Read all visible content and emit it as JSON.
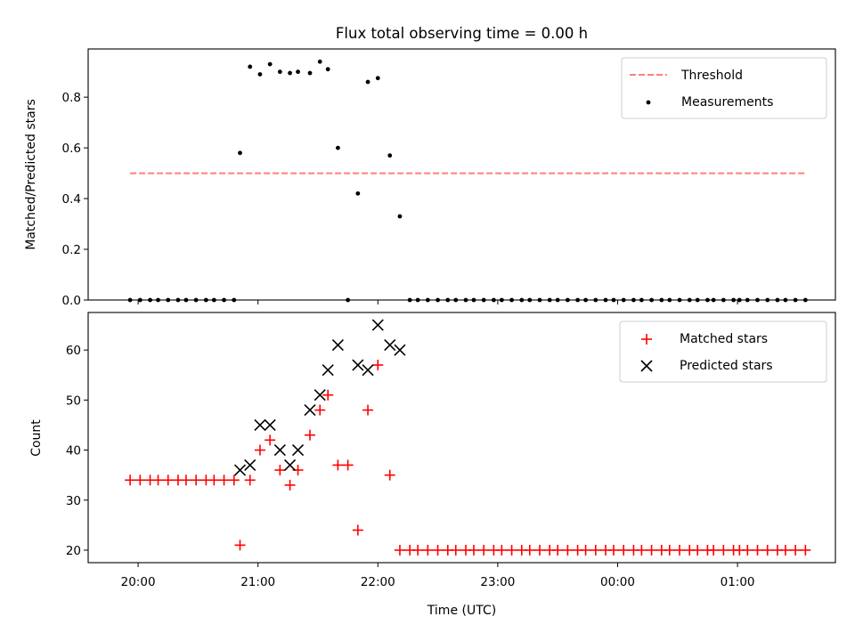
{
  "chart_data": [
    {
      "type": "scatter",
      "title": "Flux total observing time = 0.00 h",
      "xlabel": "",
      "ylabel": "Matched/Predicted stars",
      "ylim": [
        0,
        0.99
      ],
      "yticks": [
        "0.0",
        "0.2",
        "0.4",
        "0.6",
        "0.8"
      ],
      "ytick_values": [
        0,
        0.2,
        0.4,
        0.6,
        0.8
      ],
      "legend_position": "top-right",
      "grid": false,
      "threshold": {
        "name": "Threshold",
        "value": 0.5,
        "x_start": "19:56",
        "x_end": "01:34",
        "color": "#ff7f7f",
        "style": "dashed"
      },
      "series": [
        {
          "name": "Measurements",
          "color": "#000000",
          "marker": "dot",
          "points": [
            [
              "19:56",
              0
            ],
            [
              "20:01",
              0
            ],
            [
              "20:06",
              0
            ],
            [
              "20:10",
              0
            ],
            [
              "20:15",
              0
            ],
            [
              "20:20",
              0
            ],
            [
              "20:24",
              0
            ],
            [
              "20:29",
              0
            ],
            [
              "20:34",
              0
            ],
            [
              "20:38",
              0
            ],
            [
              "20:43",
              0
            ],
            [
              "20:48",
              0
            ],
            [
              "20:51",
              0.58
            ],
            [
              "20:56",
              0.92
            ],
            [
              "21:01",
              0.89
            ],
            [
              "21:06",
              0.93
            ],
            [
              "21:11",
              0.9
            ],
            [
              "21:16",
              0.895
            ],
            [
              "21:20",
              0.9
            ],
            [
              "21:26",
              0.895
            ],
            [
              "21:31",
              0.94
            ],
            [
              "21:35",
              0.91
            ],
            [
              "21:40",
              0.6
            ],
            [
              "21:45",
              0
            ],
            [
              "21:50",
              0.42
            ],
            [
              "21:55",
              0.86
            ],
            [
              "22:00",
              0.875
            ],
            [
              "22:06",
              0.57
            ],
            [
              "22:11",
              0.33
            ],
            [
              "22:16",
              0
            ],
            [
              "22:20",
              0
            ],
            [
              "22:25",
              0
            ],
            [
              "22:30",
              0
            ],
            [
              "22:35",
              0
            ],
            [
              "22:39",
              0
            ],
            [
              "22:44",
              0
            ],
            [
              "22:48",
              0
            ],
            [
              "22:53",
              0
            ],
            [
              "22:58",
              0
            ],
            [
              "23:02",
              0
            ],
            [
              "23:07",
              0
            ],
            [
              "23:12",
              0
            ],
            [
              "23:16",
              0
            ],
            [
              "23:21",
              0
            ],
            [
              "23:26",
              0
            ],
            [
              "23:30",
              0
            ],
            [
              "23:35",
              0
            ],
            [
              "23:40",
              0
            ],
            [
              "23:44",
              0
            ],
            [
              "23:49",
              0
            ],
            [
              "23:54",
              0
            ],
            [
              "23:58",
              0
            ],
            [
              "00:03",
              0
            ],
            [
              "00:08",
              0
            ],
            [
              "00:12",
              0
            ],
            [
              "00:17",
              0
            ],
            [
              "00:22",
              0
            ],
            [
              "00:26",
              0
            ],
            [
              "00:31",
              0
            ],
            [
              "00:36",
              0
            ],
            [
              "00:40",
              0
            ],
            [
              "00:45",
              0
            ],
            [
              "00:48",
              0
            ],
            [
              "00:53",
              0
            ],
            [
              "00:58",
              0
            ],
            [
              "01:01",
              0
            ],
            [
              "01:05",
              0
            ],
            [
              "01:10",
              0
            ],
            [
              "01:15",
              0
            ],
            [
              "01:20",
              0
            ],
            [
              "01:24",
              0
            ],
            [
              "01:29",
              0
            ],
            [
              "01:34",
              0
            ]
          ]
        }
      ]
    },
    {
      "type": "scatter",
      "title": "",
      "xlabel": "Time (UTC)",
      "ylabel": "Count",
      "ylim": [
        17.5,
        67.5
      ],
      "yticks": [
        "20",
        "30",
        "40",
        "50",
        "60"
      ],
      "ytick_values": [
        20,
        30,
        40,
        50,
        60
      ],
      "xlim": [
        "19:35",
        "01:49"
      ],
      "xticks": [
        "20:00",
        "21:00",
        "22:00",
        "23:00",
        "00:00",
        "01:00"
      ],
      "legend_position": "top-right",
      "grid": false,
      "series": [
        {
          "name": "Matched stars",
          "color": "#ff0000",
          "marker": "plus",
          "points": [
            [
              "19:56",
              34
            ],
            [
              "20:01",
              34
            ],
            [
              "20:06",
              34
            ],
            [
              "20:10",
              34
            ],
            [
              "20:15",
              34
            ],
            [
              "20:20",
              34
            ],
            [
              "20:24",
              34
            ],
            [
              "20:29",
              34
            ],
            [
              "20:34",
              34
            ],
            [
              "20:38",
              34
            ],
            [
              "20:43",
              34
            ],
            [
              "20:48",
              34
            ],
            [
              "20:51",
              21
            ],
            [
              "20:56",
              34
            ],
            [
              "21:01",
              40
            ],
            [
              "21:06",
              42
            ],
            [
              "21:11",
              36
            ],
            [
              "21:16",
              33
            ],
            [
              "21:20",
              36
            ],
            [
              "21:26",
              43
            ],
            [
              "21:31",
              48
            ],
            [
              "21:35",
              51
            ],
            [
              "21:40",
              37
            ],
            [
              "21:45",
              37
            ],
            [
              "21:50",
              24
            ],
            [
              "21:55",
              48
            ],
            [
              "22:00",
              57
            ],
            [
              "22:06",
              35
            ],
            [
              "22:11",
              20
            ],
            [
              "22:16",
              20
            ],
            [
              "22:20",
              20
            ],
            [
              "22:25",
              20
            ],
            [
              "22:30",
              20
            ],
            [
              "22:35",
              20
            ],
            [
              "22:39",
              20
            ],
            [
              "22:44",
              20
            ],
            [
              "22:48",
              20
            ],
            [
              "22:53",
              20
            ],
            [
              "22:58",
              20
            ],
            [
              "23:02",
              20
            ],
            [
              "23:07",
              20
            ],
            [
              "23:12",
              20
            ],
            [
              "23:16",
              20
            ],
            [
              "23:21",
              20
            ],
            [
              "23:26",
              20
            ],
            [
              "23:30",
              20
            ],
            [
              "23:35",
              20
            ],
            [
              "23:40",
              20
            ],
            [
              "23:44",
              20
            ],
            [
              "23:49",
              20
            ],
            [
              "23:54",
              20
            ],
            [
              "23:58",
              20
            ],
            [
              "00:03",
              20
            ],
            [
              "00:08",
              20
            ],
            [
              "00:12",
              20
            ],
            [
              "00:17",
              20
            ],
            [
              "00:22",
              20
            ],
            [
              "00:26",
              20
            ],
            [
              "00:31",
              20
            ],
            [
              "00:36",
              20
            ],
            [
              "00:40",
              20
            ],
            [
              "00:45",
              20
            ],
            [
              "00:48",
              20
            ],
            [
              "00:53",
              20
            ],
            [
              "00:58",
              20
            ],
            [
              "01:01",
              20
            ],
            [
              "01:05",
              20
            ],
            [
              "01:10",
              20
            ],
            [
              "01:15",
              20
            ],
            [
              "01:20",
              20
            ],
            [
              "01:24",
              20
            ],
            [
              "01:29",
              20
            ],
            [
              "01:34",
              20
            ]
          ]
        },
        {
          "name": "Predicted stars",
          "color": "#000000",
          "marker": "x",
          "points": [
            [
              "20:51",
              36
            ],
            [
              "20:56",
              37
            ],
            [
              "21:01",
              45
            ],
            [
              "21:06",
              45
            ],
            [
              "21:11",
              40
            ],
            [
              "21:16",
              37
            ],
            [
              "21:20",
              40
            ],
            [
              "21:26",
              48
            ],
            [
              "21:31",
              51
            ],
            [
              "21:35",
              56
            ],
            [
              "21:40",
              61
            ],
            [
              "21:50",
              57
            ],
            [
              "21:55",
              56
            ],
            [
              "22:00",
              65
            ],
            [
              "22:06",
              61
            ],
            [
              "22:11",
              60
            ]
          ]
        }
      ]
    }
  ]
}
